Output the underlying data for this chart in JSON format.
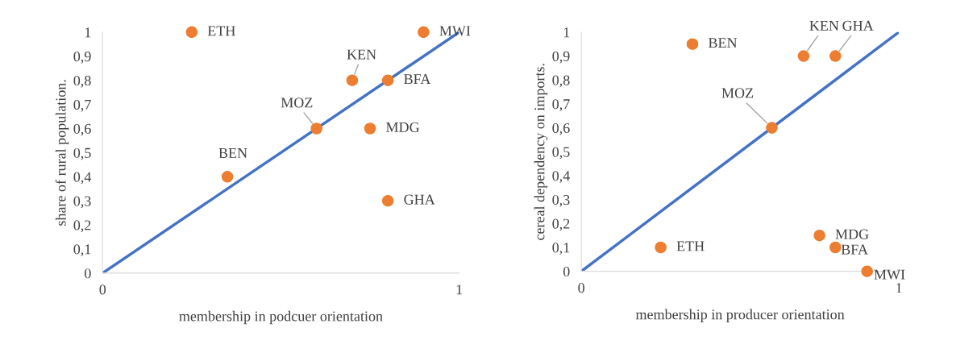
{
  "chart_data": [
    {
      "type": "scatter",
      "xlabel": "membership in podcuer orientation",
      "ylabel": "share of rural population.",
      "xlim": [
        0,
        1
      ],
      "ylim": [
        0,
        1
      ],
      "xticks": [
        0,
        1
      ],
      "yticks": [
        0,
        {
          "value": 0.1,
          "label": "0,1"
        },
        {
          "value": 0.2,
          "label": "0,2"
        },
        {
          "value": 0.3,
          "label": "0,3"
        },
        {
          "value": 0.4,
          "label": "0,4"
        },
        {
          "value": 0.5,
          "label": "0,5"
        },
        {
          "value": 0.6,
          "label": "0,6"
        },
        {
          "value": 0.7,
          "label": "0,7"
        },
        {
          "value": 0.8,
          "label": "0,8"
        },
        {
          "value": 0.9,
          "label": "0,9"
        },
        1
      ],
      "grid": false,
      "series": [
        {
          "type": "line",
          "marker": "none",
          "color": "#4472c4",
          "x": [
            0,
            1
          ],
          "values": [
            0,
            1
          ]
        },
        {
          "marker": "circle",
          "color": "#ed7d31",
          "x": [
            0.25,
            0.9,
            0.7,
            0.8,
            0.6,
            0.75,
            0.35,
            0.8
          ],
          "values": [
            1,
            1,
            0.8,
            0.8,
            0.6,
            0.6,
            0.4,
            0.3
          ]
        }
      ],
      "annotations": [
        {
          "text": "ETH",
          "x": 0.25,
          "y": 1
        },
        {
          "text": "MWI",
          "x": 0.9,
          "y": 1
        },
        {
          "text": "KEN",
          "x": 0.7,
          "y": 0.8
        },
        {
          "text": "BFA",
          "x": 0.8,
          "y": 0.8
        },
        {
          "text": "MOZ",
          "x": 0.6,
          "y": 0.6
        },
        {
          "text": "MDG",
          "x": 0.75,
          "y": 0.6
        },
        {
          "text": "BEN",
          "x": 0.35,
          "y": 0.4
        },
        {
          "text": "GHA",
          "x": 0.8,
          "y": 0.3
        }
      ]
    },
    {
      "type": "scatter",
      "xlabel": "membership in producer orientation",
      "ylabel": "cereal dependency on imports.",
      "xlim": [
        0,
        1
      ],
      "ylim": [
        0,
        1
      ],
      "xticks": [
        0,
        1
      ],
      "yticks": [
        0,
        {
          "value": 0.1,
          "label": "0,1"
        },
        {
          "value": 0.2,
          "label": "0,2"
        },
        {
          "value": 0.3,
          "label": "0,3"
        },
        {
          "value": 0.4,
          "label": "0,4"
        },
        {
          "value": 0.5,
          "label": "0,5"
        },
        {
          "value": 0.6,
          "label": "0,6"
        },
        {
          "value": 0.7,
          "label": "0,7"
        },
        {
          "value": 0.8,
          "label": "0,8"
        },
        {
          "value": 0.9,
          "label": "0,9"
        },
        1
      ],
      "grid": false,
      "series": [
        {
          "type": "line",
          "marker": "none",
          "color": "#4472c4",
          "x": [
            0,
            1
          ],
          "values": [
            0,
            1
          ]
        },
        {
          "marker": "circle",
          "color": "#ed7d31",
          "x": [
            0.35,
            0.7,
            0.8,
            0.6,
            0.25,
            0.75,
            0.8,
            0.9
          ],
          "values": [
            0.95,
            0.9,
            0.9,
            0.6,
            0.1,
            0.15,
            0.1,
            0
          ]
        }
      ],
      "annotations": [
        {
          "text": "BEN",
          "x": 0.35,
          "y": 0.95
        },
        {
          "text": "KEN",
          "x": 0.7,
          "y": 0.9
        },
        {
          "text": "GHA",
          "x": 0.8,
          "y": 0.9
        },
        {
          "text": "MOZ",
          "x": 0.6,
          "y": 0.6
        },
        {
          "text": "ETH",
          "x": 0.25,
          "y": 0.1
        },
        {
          "text": "MDG",
          "x": 0.75,
          "y": 0.15
        },
        {
          "text": "BFA",
          "x": 0.8,
          "y": 0.1
        },
        {
          "text": "MWI",
          "x": 0.9,
          "y": 0
        }
      ]
    }
  ]
}
